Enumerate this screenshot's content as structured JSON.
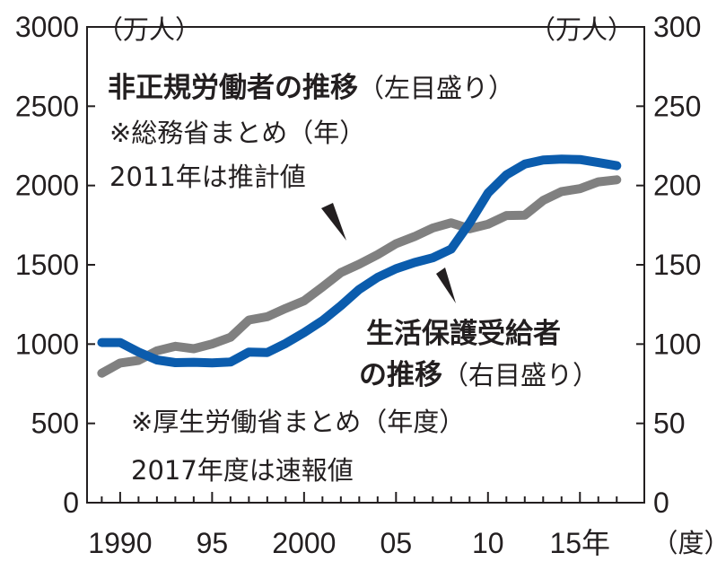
{
  "chart_data": {
    "type": "line",
    "left_axis": {
      "unit": "（万人）",
      "ticks": [
        "3000",
        "2500",
        "2000",
        "1500",
        "1000",
        "500",
        "0"
      ],
      "ylim": [
        0,
        3000
      ]
    },
    "right_axis": {
      "unit": "（万人）",
      "ticks": [
        "300",
        "250",
        "200",
        "150",
        "100",
        "50",
        "0"
      ],
      "ylim": [
        0,
        300
      ]
    },
    "x_axis": {
      "ticks": [
        1990,
        1995,
        2000,
        2005,
        2010,
        2015
      ],
      "tick_labels": [
        "1990",
        "95",
        "2000",
        "05",
        "10",
        "15年"
      ],
      "suffix": "（度）",
      "xlim": [
        1988.2,
        2018.5
      ]
    },
    "series": [
      {
        "name": "非正規労働者の推移",
        "axis_label": "（左目盛り）",
        "axis": "left",
        "color": "#808080",
        "notes": [
          "※総務省まとめ（年）",
          "2011年は推計値"
        ],
        "x": [
          1989,
          1990,
          1991,
          1992,
          1993,
          1994,
          1995,
          1996,
          1997,
          1998,
          1999,
          2000,
          2001,
          2002,
          2003,
          2004,
          2005,
          2006,
          2007,
          2008,
          2009,
          2010,
          2011,
          2012,
          2013,
          2014,
          2015,
          2016,
          2017
        ],
        "values": [
          817,
          881,
          897,
          958,
          986,
          971,
          1001,
          1043,
          1152,
          1173,
          1225,
          1273,
          1360,
          1451,
          1504,
          1564,
          1633,
          1678,
          1732,
          1765,
          1727,
          1756,
          1811,
          1813,
          1906,
          1962,
          1980,
          2023,
          2036
        ]
      },
      {
        "name_line1": "生活保護受給者",
        "name_line2": "の推移",
        "axis_label": "（右目盛り）",
        "axis": "right",
        "color": "#0b5cad",
        "notes": [
          "※厚生労働省まとめ（年度）",
          "2017年度は速報値"
        ],
        "x": [
          1989,
          1990,
          1991,
          1992,
          1993,
          1994,
          1995,
          1996,
          1997,
          1998,
          1999,
          2000,
          2001,
          2002,
          2003,
          2004,
          2005,
          2006,
          2007,
          2008,
          2009,
          2010,
          2011,
          2012,
          2013,
          2014,
          2015,
          2016,
          2017
        ],
        "values": [
          101,
          101,
          95,
          90,
          88.3,
          88.5,
          88.2,
          88.7,
          95,
          94.7,
          100.4,
          107.2,
          114.8,
          124.2,
          134.5,
          142.1,
          147.5,
          151.4,
          154.4,
          159.9,
          176.4,
          195.2,
          206.7,
          213.5,
          216.1,
          216.6,
          216.4,
          214.5,
          212.5
        ]
      }
    ]
  }
}
